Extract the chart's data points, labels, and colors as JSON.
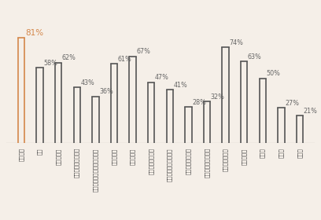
{
  "categories": [
    "健康全般",
    "せき",
    "のどの痛み",
    "肥のかゆみ・かぶれ",
    "目のかゆみ・くしゃみ・鼻水",
    "手足の冷え",
    "気管支喉息",
    "アトピー性皮膚炎",
    "関節炎・関節リウマチ",
    "アレルギー性鼻炎",
    "アレルギー性結膜炎",
    "肺炎・気管支炎",
    "脳血管疾患",
    "心疾患",
    "糖尿病",
    "高血圧"
  ],
  "values": [
    81,
    58,
    62,
    43,
    36,
    61,
    67,
    47,
    41,
    28,
    32,
    74,
    63,
    50,
    27,
    21
  ],
  "bar_color_first": "#D4874A",
  "bar_color_rest": "#555555",
  "background_color": "#F5EFE8",
  "label_color_first": "#D4874A",
  "label_color_rest": "#666666",
  "baseline_color": "#888888",
  "ylim": [
    0,
    90
  ],
  "figsize": [
    4.08,
    2.8
  ],
  "dpi": 100,
  "label_fontsize_first": 7.5,
  "label_fontsize_rest": 5.8,
  "tick_fontsize": 5.0
}
